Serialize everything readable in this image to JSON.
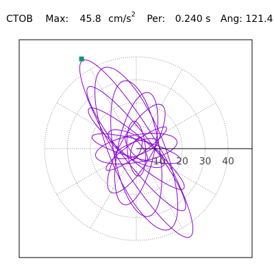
{
  "header": {
    "station": "CTOB",
    "max_label": "Max:",
    "max_value": "45.8",
    "max_unit": "cm/s",
    "max_unit_exp": "2",
    "period_label": "Per:",
    "period_value": "0.240 s",
    "angle_label": "Ang:",
    "angle_value": "121.4"
  },
  "colors": {
    "trace": "#8a00d4",
    "grid": "#888888",
    "marker": "#00997a",
    "frame": "#000000"
  },
  "chart_data": {
    "type": "scatter",
    "projection": "polar orbit (hodogram)",
    "title": "",
    "radial_axis_ticks": [
      10,
      20,
      30,
      40
    ],
    "radial_axis_range": [
      0,
      50
    ],
    "angular_gridlines_deg": [
      0,
      30,
      60,
      90,
      120,
      150,
      180,
      210,
      240,
      270,
      300,
      330
    ],
    "grid": true,
    "max_value": 45.8,
    "max_angle_deg": 121.4,
    "period_s": 0.24,
    "ellipses": [
      {
        "a": 45.0,
        "b": 9.0,
        "rot": 121.4
      },
      {
        "a": 38.0,
        "b": 12.0,
        "rot": 112
      },
      {
        "a": 34.0,
        "b": 6.5,
        "rot": 128
      },
      {
        "a": 30.0,
        "b": 10.0,
        "rot": 100
      },
      {
        "a": 27.0,
        "b": 5.0,
        "rot": 140
      },
      {
        "a": 25.0,
        "b": 8.0,
        "rot": 78
      },
      {
        "a": 22.0,
        "b": 7.0,
        "rot": 60
      },
      {
        "a": 20.0,
        "b": 4.0,
        "rot": 165
      },
      {
        "a": 18.0,
        "b": 6.0,
        "rot": 10
      },
      {
        "a": 16.0,
        "b": 3.0,
        "rot": 35
      },
      {
        "a": 14.0,
        "b": 5.0,
        "rot": 150
      },
      {
        "a": 12.0,
        "b": 4.0,
        "rot": 95
      },
      {
        "a": 10.0,
        "b": 3.0,
        "rot": 20
      },
      {
        "a": 7.0,
        "b": 2.5,
        "rot": 130
      },
      {
        "a": 5.0,
        "b": 2.0,
        "rot": 70
      }
    ],
    "start_point": {
      "r": 45.8,
      "angle_deg": 121.4
    }
  }
}
